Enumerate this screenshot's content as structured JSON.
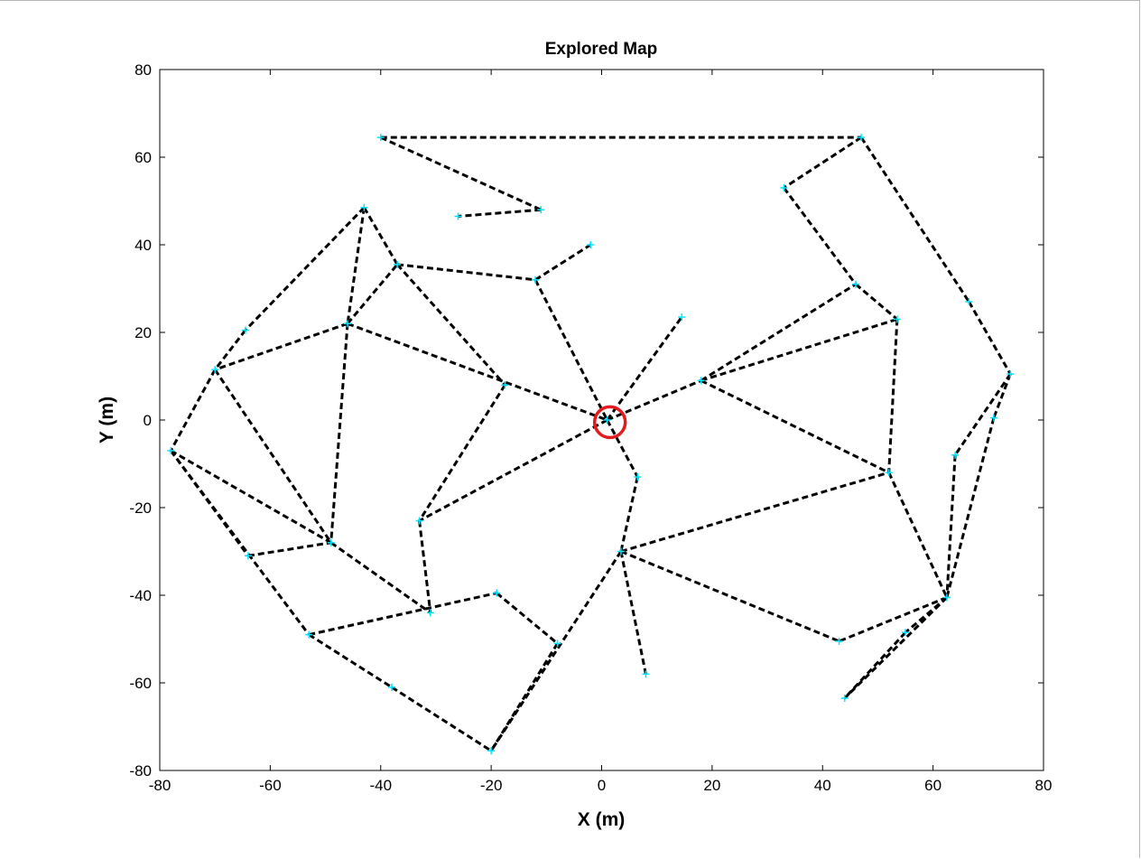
{
  "chart_data": {
    "type": "line",
    "title": "Explored Map",
    "xlabel": "X (m)",
    "ylabel": "Y (m)",
    "xlim": [
      -80,
      80
    ],
    "ylim": [
      -80,
      80
    ],
    "xticks": [
      -80,
      -60,
      -40,
      -20,
      0,
      20,
      40,
      60,
      80
    ],
    "yticks": [
      -80,
      -60,
      -40,
      -20,
      0,
      20,
      40,
      60,
      80
    ],
    "xtick_labels": [
      "-80",
      "-60",
      "-40",
      "-20",
      "0",
      "20",
      "40",
      "60",
      "80"
    ],
    "ytick_labels": [
      "-80",
      "-60",
      "-40",
      "-20",
      "0",
      "20",
      "40",
      "60",
      "80"
    ],
    "grid": false,
    "line_style": "dashed",
    "line_color": "#000000",
    "node_color": "#00e5ff",
    "marker_color": "#e41a1c",
    "current_position": [
      1.5,
      -0.5
    ],
    "nodes": [
      [
        -40,
        64.5
      ],
      [
        47,
        64.5
      ],
      [
        -11,
        48
      ],
      [
        -26,
        46.5
      ],
      [
        33,
        53
      ],
      [
        -43,
        48.5
      ],
      [
        -37,
        35.5
      ],
      [
        -12,
        32
      ],
      [
        -2,
        40
      ],
      [
        14.5,
        23.5
      ],
      [
        -64.5,
        20.5
      ],
      [
        -46,
        22
      ],
      [
        -70,
        11.5
      ],
      [
        -17.5,
        8
      ],
      [
        1,
        0
      ],
      [
        46,
        31
      ],
      [
        53.5,
        23
      ],
      [
        18,
        9
      ],
      [
        66.5,
        27
      ],
      [
        74,
        10.5
      ],
      [
        71,
        0.5
      ],
      [
        -78,
        -7
      ],
      [
        6.5,
        -13
      ],
      [
        52,
        -12
      ],
      [
        64,
        -8
      ],
      [
        -33,
        -23
      ],
      [
        -49,
        -28
      ],
      [
        -64,
        -31
      ],
      [
        3.5,
        -30
      ],
      [
        62.5,
        -40.5
      ],
      [
        -31,
        -44
      ],
      [
        -19,
        -39.5
      ],
      [
        -53,
        -49
      ],
      [
        -8,
        -51
      ],
      [
        43,
        -50.5
      ],
      [
        55,
        -48.5
      ],
      [
        8,
        -58
      ],
      [
        -38,
        -61
      ],
      [
        44,
        -63.5
      ],
      [
        -20,
        -75.5
      ]
    ],
    "edges": [
      [
        0,
        1
      ],
      [
        0,
        2
      ],
      [
        2,
        3
      ],
      [
        1,
        4
      ],
      [
        4,
        15
      ],
      [
        15,
        16
      ],
      [
        1,
        18
      ],
      [
        18,
        19
      ],
      [
        5,
        10
      ],
      [
        5,
        6
      ],
      [
        5,
        11
      ],
      [
        10,
        12
      ],
      [
        12,
        21
      ],
      [
        11,
        12
      ],
      [
        11,
        6
      ],
      [
        6,
        7
      ],
      [
        7,
        8
      ],
      [
        7,
        14
      ],
      [
        6,
        13
      ],
      [
        11,
        14
      ],
      [
        14,
        9
      ],
      [
        13,
        25
      ],
      [
        14,
        25
      ],
      [
        14,
        22
      ],
      [
        22,
        28
      ],
      [
        28,
        36
      ],
      [
        28,
        23
      ],
      [
        28,
        34
      ],
      [
        28,
        39
      ],
      [
        14,
        17
      ],
      [
        17,
        15
      ],
      [
        17,
        16
      ],
      [
        17,
        23
      ],
      [
        16,
        23
      ],
      [
        23,
        29
      ],
      [
        19,
        20
      ],
      [
        20,
        29
      ],
      [
        19,
        24
      ],
      [
        24,
        29
      ],
      [
        29,
        34
      ],
      [
        29,
        35
      ],
      [
        35,
        38
      ],
      [
        29,
        38
      ],
      [
        12,
        26
      ],
      [
        21,
        26
      ],
      [
        21,
        27
      ],
      [
        27,
        26
      ],
      [
        26,
        30
      ],
      [
        11,
        26
      ],
      [
        25,
        30
      ],
      [
        21,
        32
      ],
      [
        32,
        37
      ],
      [
        37,
        39
      ],
      [
        32,
        31
      ],
      [
        31,
        33
      ],
      [
        33,
        39
      ]
    ]
  }
}
